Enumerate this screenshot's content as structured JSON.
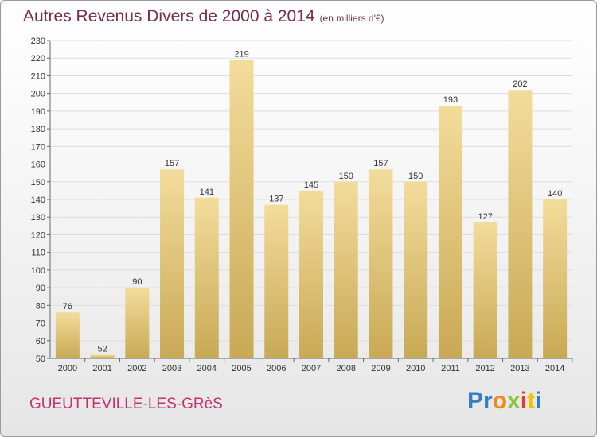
{
  "title": "Autres Revenus Divers de 2000 à 2014",
  "subtitle": "(en milliers d'€)",
  "place": "GUEUTTEVILLE-LES-GRèS",
  "logo": {
    "letters": [
      {
        "ch": "P",
        "color": "#2f7fc1"
      },
      {
        "ch": "r",
        "color": "#2f7fc1"
      },
      {
        "ch": "o",
        "color": "#f08a1c"
      },
      {
        "ch": "x",
        "color": "#8cc63f"
      },
      {
        "ch": "i",
        "color": "#e63c2f"
      },
      {
        "ch": "t",
        "color": "#f2c300"
      },
      {
        "ch": "i",
        "color": "#2f7fc1"
      }
    ]
  },
  "colors": {
    "bar_light": "#f3dc9b",
    "bar_dark": "#c8a955",
    "grid": "#dddddd",
    "title": "#7a2a4a",
    "place": "#c0336e"
  },
  "chart_data": {
    "type": "bar",
    "categories": [
      "2000",
      "2001",
      "2002",
      "2003",
      "2004",
      "2005",
      "2006",
      "2007",
      "2008",
      "2009",
      "2010",
      "2011",
      "2012",
      "2013",
      "2014"
    ],
    "values": [
      76,
      52,
      90,
      157,
      141,
      219,
      137,
      145,
      150,
      157,
      150,
      193,
      127,
      202,
      140
    ],
    "ylim": [
      50,
      230
    ],
    "ytick_step": 10,
    "grid": true
  }
}
